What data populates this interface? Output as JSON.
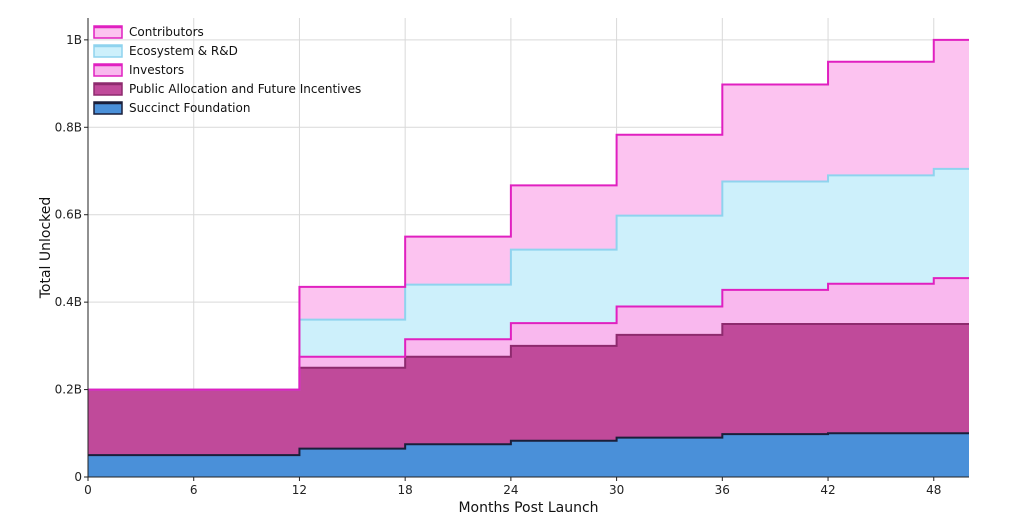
{
  "chart_data": {
    "type": "area",
    "step": true,
    "title": "",
    "xlabel": "Months Post Launch",
    "ylabel": "Total Unlocked",
    "xlim": [
      0,
      50
    ],
    "ylim": [
      0,
      1050000000
    ],
    "x_ticks": [
      0,
      6,
      12,
      18,
      24,
      30,
      36,
      42,
      48
    ],
    "x_tick_labels": [
      "0",
      "6",
      "12",
      "18",
      "24",
      "30",
      "36",
      "42",
      "48"
    ],
    "y_ticks": [
      0,
      200000000,
      400000000,
      600000000,
      800000000,
      1000000000
    ],
    "y_tick_labels": [
      "0",
      "0.2B",
      "0.4B",
      "0.6B",
      "0.8B",
      "1B"
    ],
    "grid": true,
    "legend_position": "top-left",
    "x": [
      0,
      12,
      18,
      24,
      30,
      36,
      42,
      48,
      50
    ],
    "series": [
      {
        "name": "Succinct Foundation",
        "fill": "#4a90d9",
        "line": "#1a1f3a",
        "values": [
          50000000,
          65000000,
          75000000,
          83000000,
          90000000,
          98000000,
          100000000,
          100000000,
          100000000
        ]
      },
      {
        "name": "Public Allocation and Future Incentives",
        "fill": "#c04a9a",
        "line": "#8e2a6e",
        "values": [
          150000000,
          185000000,
          200000000,
          217000000,
          235000000,
          252000000,
          250000000,
          250000000,
          250000000
        ]
      },
      {
        "name": "Investors",
        "fill": "#f9b8ee",
        "line": "#e020c0",
        "values": [
          0,
          25000000,
          40000000,
          52000000,
          65000000,
          78000000,
          92000000,
          105000000,
          105000000
        ]
      },
      {
        "name": "Ecosystem & R&D",
        "fill": "#cdf0fb",
        "line": "#8fd3ee",
        "values": [
          0,
          85000000,
          125000000,
          168000000,
          208000000,
          248000000,
          248000000,
          250000000,
          250000000
        ]
      },
      {
        "name": "Contributors",
        "fill": "#fcc3f0",
        "line": "#e020c0",
        "values": [
          0,
          75000000,
          110000000,
          147000000,
          185000000,
          222000000,
          260000000,
          295000000,
          295000000
        ]
      }
    ],
    "legend_order": [
      "Contributors",
      "Ecosystem & R&D",
      "Investors",
      "Public Allocation and Future Incentives",
      "Succinct Foundation"
    ]
  }
}
